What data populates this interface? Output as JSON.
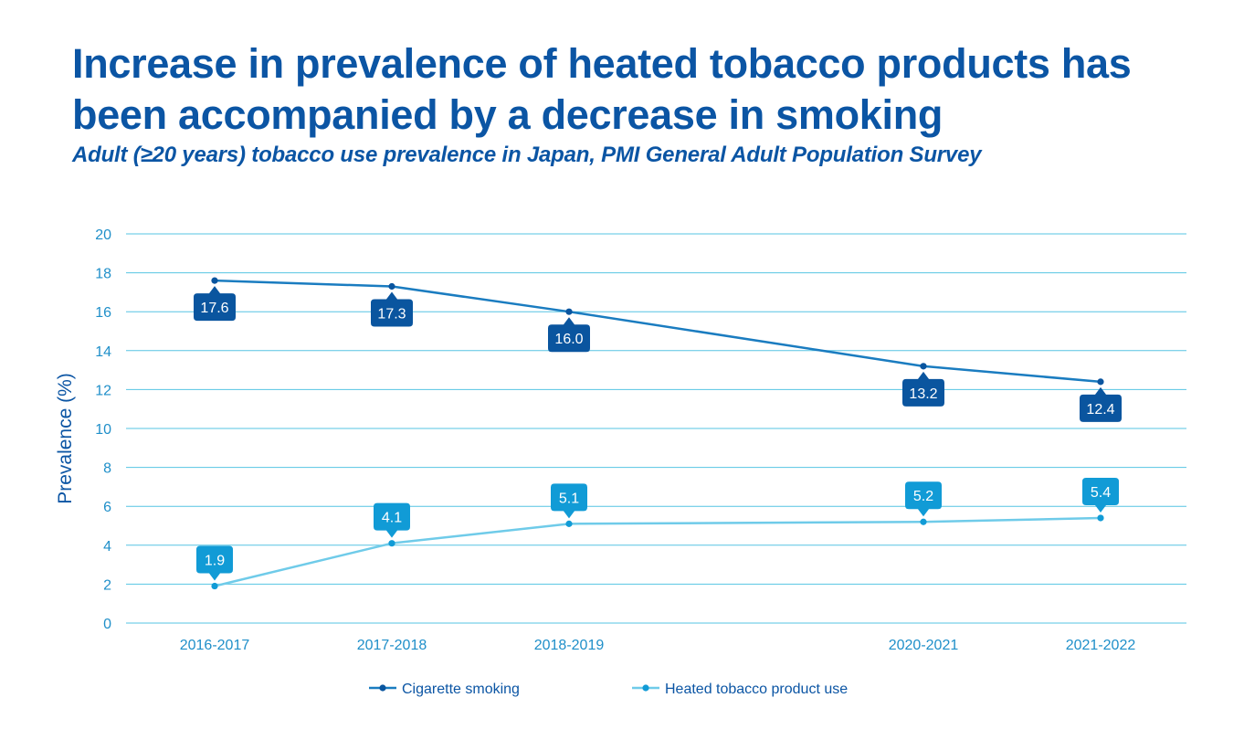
{
  "title": "Increase in prevalence of heated tobacco products has been accompanied by a decrease in smoking",
  "subtitle": "Adult (≥20 years) tobacco use prevalence in Japan, PMI General Adult Population Survey",
  "colors": {
    "grid": "#56c4e3",
    "axis_text": "#1f8fc9",
    "title": "#0b55a4"
  },
  "chart_data": {
    "type": "line",
    "categories": [
      "2016-2017",
      "2017-2018",
      "2018-2019",
      "2020-2021",
      "2021-2022"
    ],
    "x_positions": [
      0,
      1,
      2,
      4,
      5
    ],
    "ylabel": "Prevalence  (%)",
    "xlabel": "",
    "ylim": [
      0,
      20
    ],
    "yticks": [
      0,
      2,
      4,
      6,
      8,
      10,
      12,
      14,
      16,
      18,
      20
    ],
    "grid": true,
    "legend_position": "bottom",
    "series": [
      {
        "name": "Cigarette smoking",
        "values": [
          17.6,
          17.3,
          16.0,
          13.2,
          12.4
        ],
        "labels": [
          "17.6",
          "17.3",
          "16.0",
          "13.2",
          "12.4"
        ],
        "color": "#1a7cc0",
        "label_color": "#0a559f",
        "label_side": "below"
      },
      {
        "name": "Heated tobacco product use",
        "values": [
          1.9,
          4.1,
          5.1,
          5.2,
          5.4
        ],
        "labels": [
          "1.9",
          "4.1",
          "5.1",
          "5.2",
          "5.4"
        ],
        "color": "#6fcbe9",
        "label_color": "#119bd6",
        "label_side": "above"
      }
    ]
  }
}
